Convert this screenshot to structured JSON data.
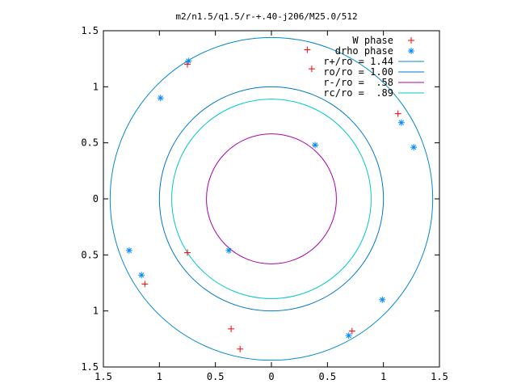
{
  "chart_data": {
    "type": "scatter",
    "title": "m2/n1.5/q1.5/r-+.40-j206/M25.0/512",
    "xlim": [
      -1.5,
      1.5
    ],
    "ylim": [
      -1.5,
      1.5
    ],
    "x_tick_values": [
      -1.5,
      -1,
      -0.5,
      0,
      0.5,
      1,
      1.5
    ],
    "x_tick_labels": [
      "1.5",
      "1",
      "0.5",
      "0",
      "0.5",
      "1",
      "1.5"
    ],
    "y_tick_values": [
      1.5,
      1,
      0.5,
      0,
      -0.5,
      -1,
      -1.5
    ],
    "y_tick_labels": [
      "1.5",
      "1",
      "0.5",
      "0",
      "0.5",
      "1",
      "1.5"
    ],
    "legend_position": "top-right",
    "grid": false,
    "series": [
      {
        "name": "W phase",
        "marker": "plus",
        "color": "#ff0000",
        "points": [
          [
            -0.75,
            1.2
          ],
          [
            0.36,
            1.16
          ],
          [
            1.13,
            0.76
          ],
          [
            -0.75,
            -0.48
          ],
          [
            -0.36,
            -1.16
          ],
          [
            -1.13,
            -0.76
          ],
          [
            0.72,
            -1.18
          ],
          [
            0.32,
            1.33
          ],
          [
            -0.28,
            -1.34
          ]
        ]
      },
      {
        "name": "drho phase",
        "marker": "asterisk",
        "color": "#0088ff",
        "points": [
          [
            -0.74,
            1.23
          ],
          [
            0.39,
            0.48
          ],
          [
            1.16,
            0.68
          ],
          [
            0.69,
            -1.22
          ],
          [
            -0.38,
            -0.46
          ],
          [
            -1.16,
            -0.68
          ],
          [
            1.27,
            0.46
          ],
          [
            -1.27,
            -0.46
          ],
          [
            0.99,
            -0.9
          ],
          [
            -0.99,
            0.9
          ]
        ]
      }
    ],
    "reference_circles": [
      {
        "name": "r+/ro = 1.44",
        "radius": 1.44,
        "color": "#0088cc"
      },
      {
        "name": "ro/ro = 1.00",
        "radius": 1.0,
        "color": "#0077cc"
      },
      {
        "name": "r-/ro =  .58",
        "radius": 0.58,
        "color": "#aa00aa"
      },
      {
        "name": "rc/ro =  .89",
        "radius": 0.89,
        "color": "#00c8c8"
      }
    ]
  }
}
